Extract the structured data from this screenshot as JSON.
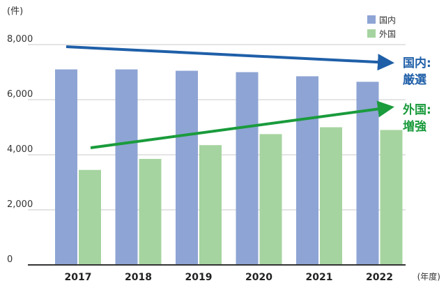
{
  "chart_data": {
    "type": "bar",
    "ylabel": "(件)",
    "xlabel": "(年度)",
    "ylim": [
      0,
      8000
    ],
    "yticks": [
      0,
      2000,
      4000,
      6000,
      8000
    ],
    "ytick_labels": [
      "0",
      "2,000",
      "4,000",
      "6,000",
      "8,000"
    ],
    "grid": true,
    "legend_position": "top-right",
    "categories": [
      "2017",
      "2018",
      "2019",
      "2020",
      "2021",
      "2022"
    ],
    "series": [
      {
        "name": "国内",
        "color": "#8ea4d4",
        "values": [
          7100,
          7100,
          7050,
          7000,
          6850,
          6650
        ]
      },
      {
        "name": "外国",
        "color": "#a6d4a0",
        "values": [
          3450,
          3850,
          4350,
          4750,
          5000,
          4900
        ]
      }
    ],
    "annotations": [
      {
        "text": "国内:",
        "text2": "厳選",
        "color": "#1f5fa8",
        "trend": "down"
      },
      {
        "text": "外国:",
        "text2": "増強",
        "color": "#1a9b3c",
        "trend": "up"
      }
    ]
  }
}
